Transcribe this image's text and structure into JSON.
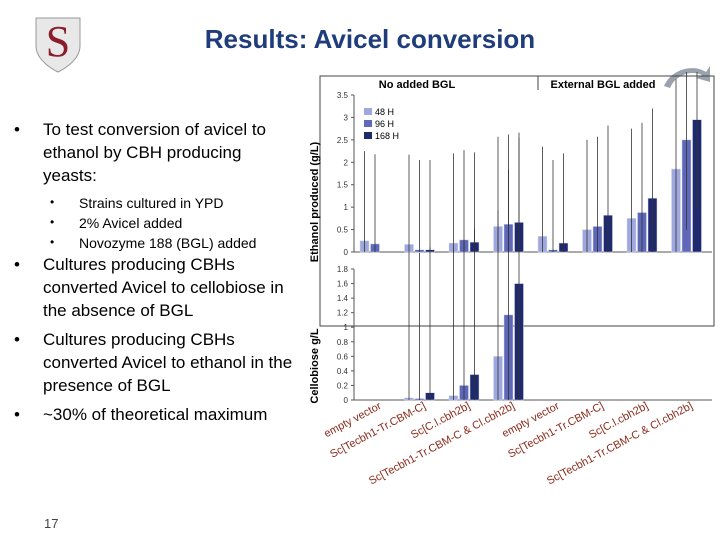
{
  "slide": {
    "title": "Results: Avicel conversion",
    "number": "17",
    "logo_letter": "S"
  },
  "bullets": [
    {
      "text": "To test conversion of avicel to ethanol by CBH producing yeasts:",
      "sub": [
        "Strains cultured in YPD",
        "2% Avicel added",
        "Novozyme 188 (BGL) added"
      ]
    },
    {
      "text": "Cultures producing CBHs converted Avicel to cellobiose in the absence of BGL",
      "sub": []
    },
    {
      "text": "Cultures producing CBHs converted Avicel to ethanol in the presence of BGL",
      "sub": []
    },
    {
      "text": "~30% of theoretical maximum",
      "sub": []
    }
  ],
  "colors": {
    "title": "#1f3d7a",
    "s48": "#9fa8de",
    "s96": "#5e67b8",
    "s168": "#1f2a6e"
  },
  "chart_data": {
    "type": "bar",
    "groups": [
      "No added BGL",
      "External BGL added"
    ],
    "categories": [
      "empty vector",
      "Sc[Tecbh1-Tr.CBM-C]",
      "Sc[C.l.cbh2b]",
      "Sc[Tecbh1-Tr.CBM-C & Cl.cbh2b]",
      "empty vector",
      "Sc[Tecbh1-Tr.CBM-C]",
      "Sc[C.l.cbh2b]",
      "Sc[Tecbh1-Tr.CBM-C & Cl.cbh2b]"
    ],
    "legend": [
      "48 H",
      "96 H",
      "168 H"
    ],
    "ethanol": {
      "ylabel": "Ethanol produced (g/L)",
      "ylim": [
        0,
        3.5
      ],
      "ticks": [
        "0",
        "0.5",
        "1",
        "1.5",
        "2",
        "2.5",
        "3",
        "3.5"
      ],
      "tick_values": [
        0,
        0.5,
        1,
        1.5,
        2,
        2.5,
        3,
        3.5
      ],
      "series": [
        {
          "name": "48 H",
          "values": [
            0.25,
            0.17,
            0.2,
            0.57,
            0.35,
            0.5,
            0.75,
            1.85
          ]
        },
        {
          "name": "96 H",
          "values": [
            0.18,
            0.05,
            0.27,
            0.62,
            0.05,
            0.57,
            0.88,
            2.5
          ]
        },
        {
          "name": "168 H",
          "values": [
            0.0,
            0.05,
            0.22,
            0.66,
            0.2,
            0.82,
            1.2,
            2.95
          ]
        }
      ]
    },
    "cellobiose": {
      "ylabel": "Cellobiose g/L",
      "ylim": [
        0,
        1.8
      ],
      "ticks": [
        "0",
        "0.2",
        "0.4",
        "0.6",
        "0.8",
        "1",
        "1.2",
        "1.4",
        "1.6",
        "1.8"
      ],
      "tick_values": [
        0,
        0.2,
        0.4,
        0.6,
        0.8,
        1,
        1.2,
        1.4,
        1.6,
        1.8
      ],
      "series": [
        {
          "name": "48 H",
          "values": [
            0,
            0.03,
            0.06,
            0.6,
            0,
            0,
            0,
            0
          ]
        },
        {
          "name": "96 H",
          "values": [
            0,
            0.02,
            0.2,
            1.17,
            0,
            0,
            0,
            0
          ]
        },
        {
          "name": "168 H",
          "values": [
            0,
            0.1,
            0.35,
            1.6,
            0,
            0,
            0,
            0
          ]
        }
      ]
    }
  }
}
